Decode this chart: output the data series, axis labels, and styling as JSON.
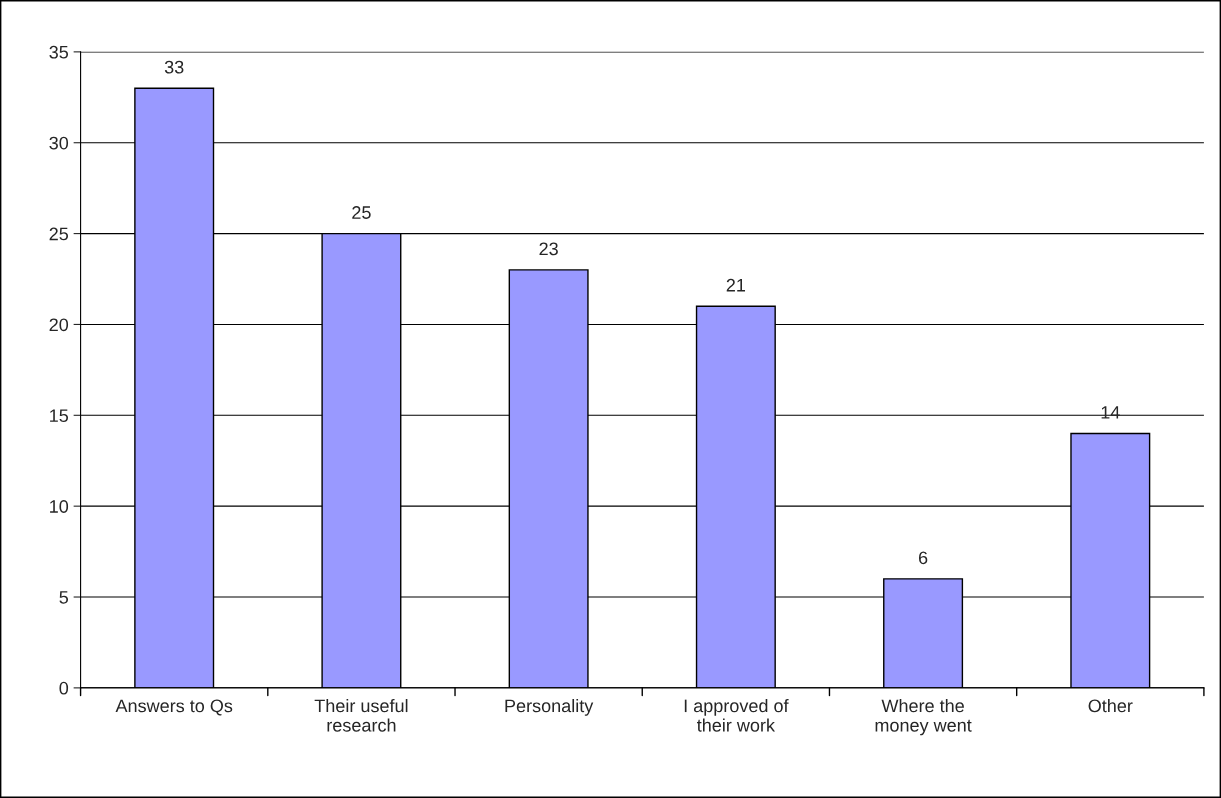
{
  "chart_data": {
    "type": "bar",
    "categories": [
      "Answers to Qs",
      "Their useful\nresearch",
      "Personality",
      "I approved of\ntheir work",
      "Where the\nmoney went",
      "Other"
    ],
    "values": [
      33,
      25,
      23,
      21,
      6,
      14
    ],
    "color": "#9999ff",
    "ylim": [
      0,
      35
    ],
    "yticks": [
      0,
      5,
      10,
      15,
      20,
      25,
      30,
      35
    ],
    "grid": "y",
    "data_labels": true,
    "legend": false
  }
}
